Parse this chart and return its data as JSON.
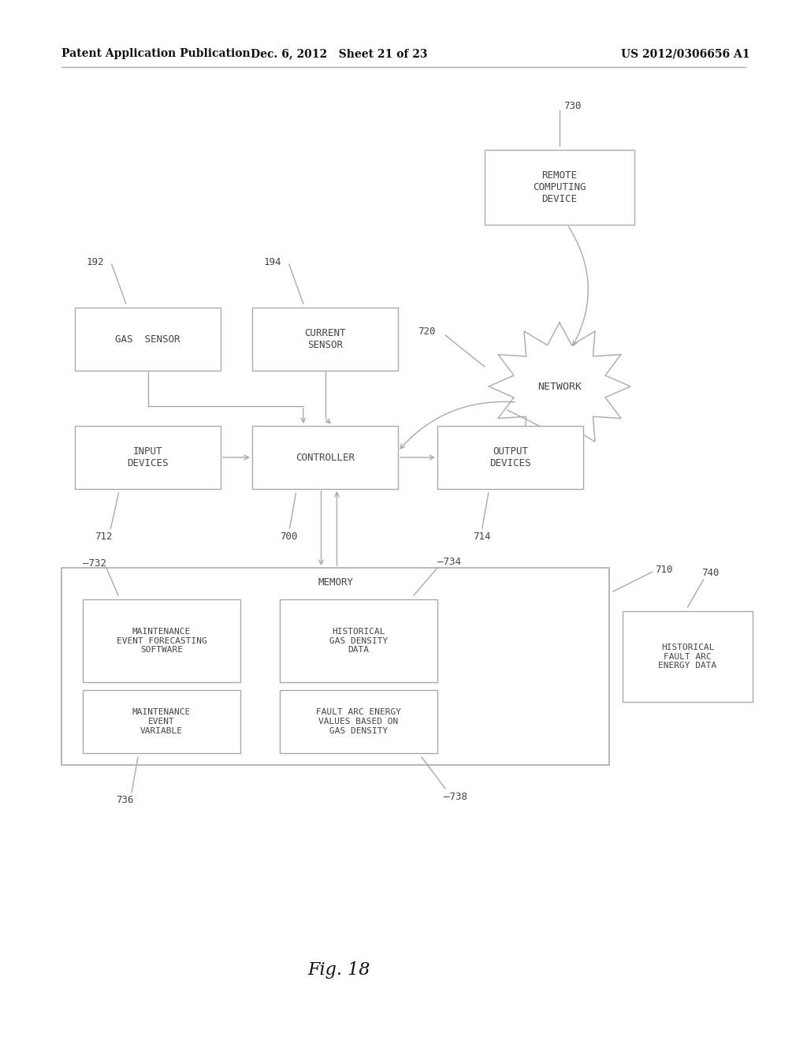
{
  "bg_color": "#ffffff",
  "header_left": "Patent Application Publication",
  "header_mid": "Dec. 6, 2012   Sheet 21 of 23",
  "header_right": "US 2012/0306656 A1",
  "fig_label": "Fig. 18",
  "line_color": "#aaaaaa",
  "text_color": "#444444",
  "edge_color": "#aaaaaa"
}
